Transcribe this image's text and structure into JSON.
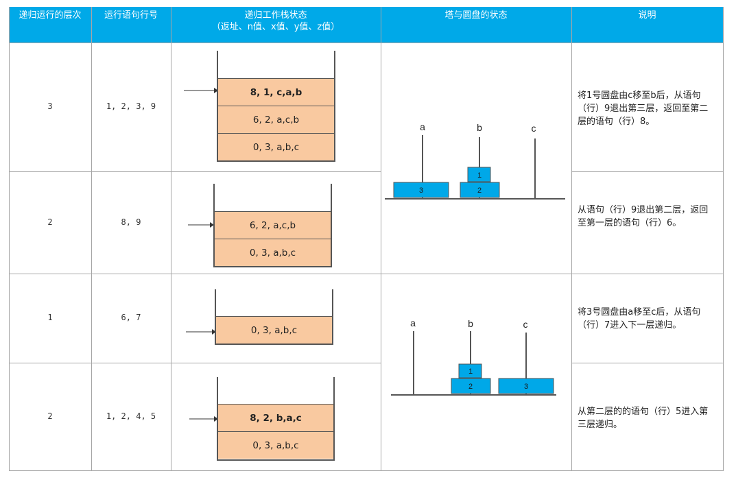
{
  "header": {
    "col1": "递归运行的层次",
    "col2": "运行语句行号",
    "col3_line1": "递归工作栈状态",
    "col3_line2": "（返址、n值、x值、y值、z值）",
    "col4": "塔与圆盘的状态",
    "col5": "说明"
  },
  "rows": [
    {
      "level": "3",
      "lines": "1, 2, 3, 9",
      "stack": [
        "8, 1, c,a,b",
        "6, 2, a,c,b",
        "0, 3, a,b,c"
      ],
      "note": "将1号圆盘由c移至b后，从语句（行）9退出第三层，返回至第二层的语句（行）8。"
    },
    {
      "level": "2",
      "lines": "8, 9",
      "stack": [
        "6, 2, a,c,b",
        "0, 3, a,b,c"
      ],
      "note": "从语句（行）9退出第二层，返回至第一层的语句（行）6。"
    },
    {
      "level": "1",
      "lines": "6, 7",
      "stack": [
        "0, 3, a,b,c"
      ],
      "note": "将3号圆盘由a移至c后，从语句（行）7进入下一层递归。"
    },
    {
      "level": "2",
      "lines": "1, 2, 4, 5",
      "stack": [
        "8, 2, b,a,c",
        "0, 3, a,b,c"
      ],
      "note": "从第二层的的语句（行）5进入第三层递归。"
    }
  ],
  "towers": {
    "peg_labels": [
      "a",
      "b",
      "c"
    ],
    "disk_color": "#00a8e8",
    "diagram1": {
      "disks": [
        {
          "num": "3",
          "peg": "a"
        },
        {
          "num": "2",
          "peg": "b"
        },
        {
          "num": "1",
          "peg": "b"
        }
      ]
    },
    "diagram2": {
      "disks": [
        {
          "num": "2",
          "peg": "b"
        },
        {
          "num": "1",
          "peg": "b"
        },
        {
          "num": "3",
          "peg": "c"
        }
      ]
    }
  },
  "colors": {
    "header_bg": "#00a9e8",
    "stack_fill": "#f9c9a0",
    "grid": "#a6a6a6"
  }
}
